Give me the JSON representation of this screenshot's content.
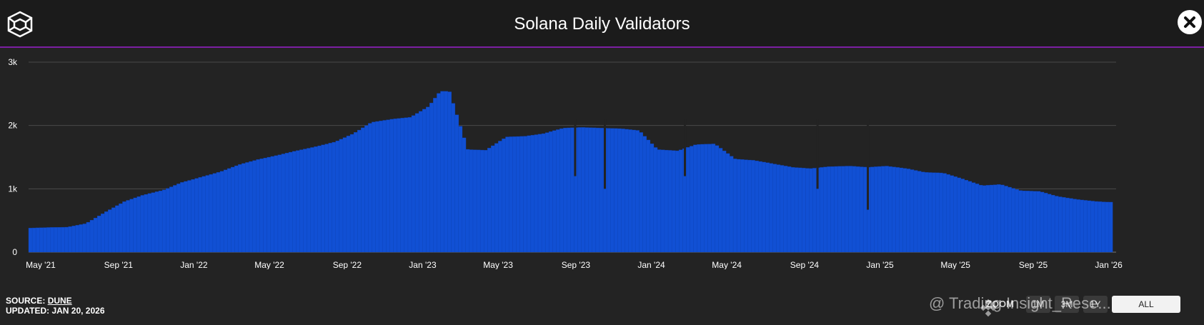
{
  "header": {
    "title": "Solana Daily Validators"
  },
  "footer": {
    "source_label": "SOURCE:",
    "source_name": "DUNE",
    "updated_label": "UPDATED:",
    "updated_date": "JAN 20, 2026"
  },
  "zoom": {
    "label": "ZOOM",
    "buttons": [
      "1M",
      "3M",
      "1Y",
      "ALL"
    ]
  },
  "watermark": {
    "text": "@ Trading Insight_Rese..."
  },
  "colors": {
    "bar": "#1150d4",
    "bar_edge": "#0d3fb0",
    "grid": "#4a4a4a",
    "axis_text": "#ffffff",
    "accent": "#7b1fa2"
  },
  "chart_data": {
    "type": "bar",
    "title": "Solana Daily Validators",
    "xlabel": "",
    "ylabel": "",
    "ylim": [
      0,
      3000
    ],
    "yticks": [
      0,
      1000,
      2000,
      3000
    ],
    "ytick_labels": [
      "0",
      "1k",
      "2k",
      "3k"
    ],
    "xlim": [
      2021.33,
      2026.07
    ],
    "xticks": [
      2021.33,
      2021.67,
      2022.0,
      2022.33,
      2022.67,
      2023.0,
      2023.33,
      2023.67,
      2024.0,
      2024.33,
      2024.67,
      2025.0,
      2025.33,
      2025.67,
      2026.0
    ],
    "xtick_labels": [
      "May '21",
      "Sep '21",
      "Jan '22",
      "May '22",
      "Sep '22",
      "Jan '23",
      "May '23",
      "Sep '23",
      "Jan '24",
      "May '24",
      "Sep '24",
      "Jan '25",
      "May '25",
      "Sep '25",
      "Jan '26"
    ],
    "series": [
      {
        "name": "Validators",
        "x": [
          2021.33,
          2021.42,
          2021.5,
          2021.58,
          2021.67,
          2021.75,
          2021.83,
          2021.92,
          2022.0,
          2022.08,
          2022.17,
          2022.25,
          2022.33,
          2022.42,
          2022.5,
          2022.58,
          2022.67,
          2022.75,
          2022.83,
          2022.92,
          2023.0,
          2023.08,
          2023.13,
          2023.15,
          2023.17,
          2023.25,
          2023.33,
          2023.42,
          2023.5,
          2023.58,
          2023.67,
          2023.75,
          2023.83,
          2023.92,
          2024.0,
          2024.08,
          2024.17,
          2024.25,
          2024.33,
          2024.42,
          2024.5,
          2024.58,
          2024.67,
          2024.75,
          2024.83,
          2024.92,
          2025.0,
          2025.08,
          2025.17,
          2025.25,
          2025.33,
          2025.42,
          2025.5,
          2025.58,
          2025.67,
          2025.75,
          2025.83,
          2025.92,
          2026.0,
          2026.05
        ],
        "values": [
          380,
          390,
          395,
          450,
          640,
          800,
          900,
          980,
          1100,
          1180,
          1270,
          1380,
          1460,
          1530,
          1600,
          1660,
          1740,
          1870,
          2050,
          2100,
          2130,
          2300,
          2540,
          2540,
          2540,
          1620,
          1610,
          1820,
          1830,
          1870,
          1960,
          1970,
          1960,
          1950,
          1920,
          1620,
          1600,
          1700,
          1710,
          1470,
          1450,
          1400,
          1340,
          1320,
          1350,
          1360,
          1340,
          1360,
          1320,
          1260,
          1250,
          1150,
          1050,
          1070,
          970,
          960,
          880,
          830,
          800,
          790
        ]
      }
    ],
    "annotations": [
      {
        "x": 2023.72,
        "value": 1200
      },
      {
        "x": 2023.85,
        "value": 1000
      },
      {
        "x": 2024.2,
        "value": 1200
      },
      {
        "x": 2024.78,
        "value": 1000
      },
      {
        "x": 2025.0,
        "value": 670
      }
    ]
  }
}
